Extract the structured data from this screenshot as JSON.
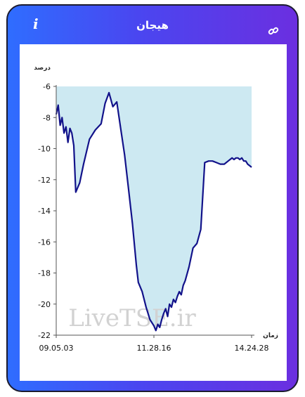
{
  "header": {
    "title": "هیجان",
    "info_label": "i"
  },
  "icons": {
    "info": "info-icon",
    "link": "link-icon"
  },
  "colors": {
    "gradient_start": "#2f6dff",
    "gradient_end": "#6b2fe0",
    "line": "#12128a",
    "fill": "#cde9f2"
  },
  "watermark": "LiveTSE.ir",
  "chart_data": {
    "type": "area",
    "ylabel": "درصد",
    "xlabel": "زمان",
    "ylim": [
      -22,
      -6
    ],
    "yticks": [
      "-6",
      "-8",
      "-10",
      "-12",
      "-14",
      "-16",
      "-18",
      "-20",
      "-22"
    ],
    "xticks": [
      "09.05.03",
      "11.28.16",
      "14.24.28"
    ],
    "fill_baseline": -6,
    "x": [
      0,
      1,
      2,
      3,
      4,
      5,
      6,
      7,
      8,
      9,
      10,
      12,
      14,
      17,
      20,
      23,
      25,
      27,
      29,
      31,
      33,
      35,
      37,
      39,
      41,
      42,
      44,
      46,
      48,
      50,
      51,
      52,
      53,
      54,
      55,
      56,
      57,
      58,
      59,
      60,
      61,
      62,
      63,
      64,
      65,
      66,
      68,
      70,
      72,
      74,
      76,
      78,
      80,
      82,
      84,
      85,
      86,
      87,
      88,
      89,
      90,
      91,
      92,
      93,
      94,
      95,
      96,
      97,
      98,
      99,
      100
    ],
    "values": [
      -7.8,
      -7.2,
      -8.5,
      -8.0,
      -9.0,
      -8.6,
      -9.6,
      -8.7,
      -9.0,
      -9.8,
      -12.8,
      -12.2,
      -11.0,
      -9.4,
      -8.8,
      -8.4,
      -7.1,
      -6.4,
      -7.3,
      -7.0,
      -8.7,
      -10.4,
      -12.6,
      -14.8,
      -17.5,
      -18.6,
      -19.2,
      -20.2,
      -21.0,
      -21.4,
      -21.7,
      -21.3,
      -21.5,
      -21.0,
      -20.6,
      -20.3,
      -20.8,
      -20.0,
      -20.2,
      -19.7,
      -19.9,
      -19.5,
      -19.2,
      -19.4,
      -18.8,
      -18.5,
      -17.6,
      -16.4,
      -16.1,
      -15.2,
      -10.9,
      -10.8,
      -10.8,
      -10.9,
      -11.0,
      -11.0,
      -11.0,
      -10.9,
      -10.8,
      -10.7,
      -10.6,
      -10.7,
      -10.6,
      -10.6,
      -10.7,
      -10.6,
      -10.8,
      -10.8,
      -11.0,
      -11.1,
      -11.2
    ]
  }
}
